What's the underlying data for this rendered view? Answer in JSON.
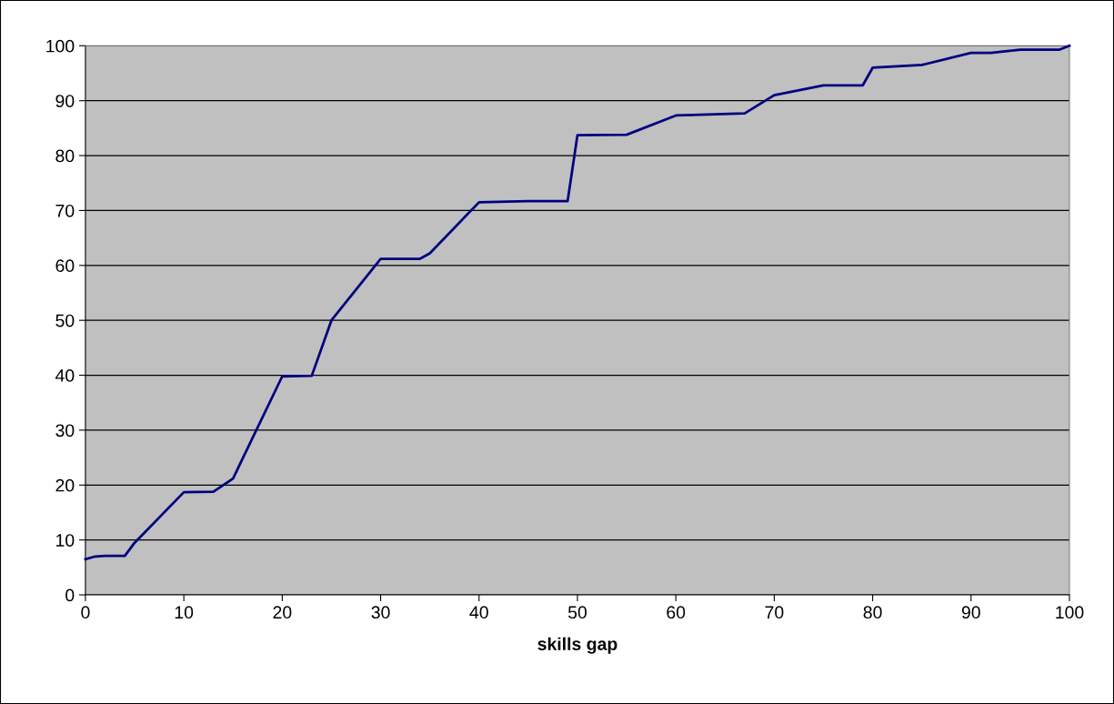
{
  "chart_data": {
    "type": "line",
    "xlabel": "skills gap",
    "x": [
      0,
      1,
      2,
      4,
      5,
      10,
      13,
      15,
      20,
      23,
      25,
      30,
      34,
      35,
      40,
      45,
      49,
      50,
      55,
      60,
      67,
      70,
      75,
      79,
      80,
      85,
      90,
      92,
      95,
      99,
      100
    ],
    "series": [
      {
        "color": "#000080",
        "values": [
          6.5,
          7,
          7.1,
          7.1,
          9.5,
          18.7,
          18.8,
          21.2,
          39.8,
          39.9,
          50,
          61.2,
          61.2,
          62.2,
          71.5,
          71.7,
          71.7,
          83.7,
          83.8,
          87.3,
          87.7,
          91,
          92.8,
          92.8,
          96,
          96.5,
          98.7,
          98.7,
          99.3,
          99.3,
          100
        ]
      }
    ],
    "xlim": [
      0,
      100
    ],
    "xticks": [
      0,
      10,
      20,
      30,
      40,
      50,
      60,
      70,
      80,
      90,
      100
    ],
    "ylim": [
      0,
      100
    ],
    "yticks": [
      0,
      10,
      20,
      30,
      40,
      50,
      60,
      70,
      80,
      90,
      100
    ],
    "grid": "y",
    "marker": "none",
    "line_style": "solid"
  }
}
